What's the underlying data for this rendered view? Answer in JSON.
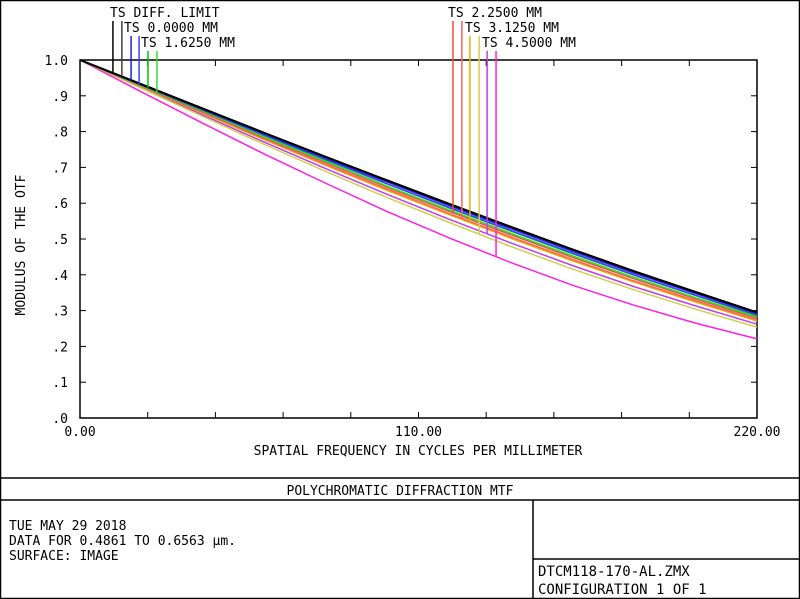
{
  "chart_data": {
    "type": "line",
    "title": "POLYCHROMATIC DIFFRACTION MTF",
    "xlabel": "SPATIAL FREQUENCY IN CYCLES PER MILLIMETER",
    "ylabel": "MODULUS OF THE OTF",
    "xlim": [
      0,
      220
    ],
    "ylim": [
      0,
      1.0
    ],
    "x_tick_labels": [
      "0.00",
      "110.00",
      "220.00"
    ],
    "y_tick_labels": [
      ".0",
      ".1",
      ".2",
      ".3",
      ".4",
      ".5",
      ".6",
      ".7",
      ".8",
      ".9",
      "1.0"
    ],
    "grid": false,
    "legend_placement": "top",
    "legend": [
      {
        "label": "TS DIFF. LIMIT",
        "series": [
          0,
          1
        ]
      },
      {
        "label": "TS 0.0000 MM",
        "series": [
          2,
          3
        ]
      },
      {
        "label": "TS 1.6250 MM",
        "series": [
          4,
          5
        ]
      },
      {
        "label": "TS 2.2500 MM",
        "series": [
          6,
          7
        ]
      },
      {
        "label": "TS 3.1250 MM",
        "series": [
          8,
          9
        ]
      },
      {
        "label": "TS 4.5000 MM",
        "series": [
          10,
          11
        ]
      }
    ],
    "x": [
      0,
      20,
      40,
      60,
      80,
      100,
      120,
      140,
      160,
      180,
      200,
      220
    ],
    "series": [
      {
        "color": "#000000",
        "values": [
          1,
          0.932,
          0.864,
          0.796,
          0.729,
          0.663,
          0.598,
          0.534,
          0.471,
          0.41,
          0.352,
          0.295
        ]
      },
      {
        "color": "#404040",
        "values": [
          1,
          0.932,
          0.864,
          0.796,
          0.729,
          0.663,
          0.598,
          0.534,
          0.471,
          0.41,
          0.352,
          0.295
        ]
      },
      {
        "color": "#2020e0",
        "values": [
          1,
          0.931,
          0.862,
          0.793,
          0.725,
          0.659,
          0.593,
          0.529,
          0.466,
          0.405,
          0.348,
          0.291
        ]
      },
      {
        "color": "#4040ff",
        "values": [
          1,
          0.93,
          0.86,
          0.79,
          0.722,
          0.654,
          0.588,
          0.524,
          0.461,
          0.4,
          0.343,
          0.288
        ]
      },
      {
        "color": "#00c800",
        "values": [
          1,
          0.93,
          0.859,
          0.789,
          0.72,
          0.653,
          0.587,
          0.522,
          0.459,
          0.399,
          0.342,
          0.286
        ]
      },
      {
        "color": "#30e030",
        "values": [
          1,
          0.928,
          0.857,
          0.785,
          0.716,
          0.647,
          0.581,
          0.516,
          0.453,
          0.393,
          0.336,
          0.282
        ]
      },
      {
        "color": "#f05030",
        "values": [
          1,
          0.927,
          0.855,
          0.783,
          0.713,
          0.644,
          0.577,
          0.512,
          0.449,
          0.389,
          0.333,
          0.279
        ]
      },
      {
        "color": "#ff6060",
        "values": [
          1,
          0.926,
          0.853,
          0.78,
          0.708,
          0.639,
          0.571,
          0.506,
          0.443,
          0.383,
          0.328,
          0.274
        ]
      },
      {
        "color": "#e0b000",
        "values": [
          1,
          0.925,
          0.851,
          0.777,
          0.705,
          0.635,
          0.568,
          0.502,
          0.439,
          0.38,
          0.324,
          0.271
        ]
      },
      {
        "color": "#d0d050",
        "values": [
          1,
          0.921,
          0.842,
          0.764,
          0.688,
          0.615,
          0.546,
          0.479,
          0.416,
          0.358,
          0.304,
          0.254
        ]
      },
      {
        "color": "#c040e0",
        "values": [
          1,
          0.923,
          0.846,
          0.77,
          0.696,
          0.624,
          0.555,
          0.489,
          0.426,
          0.367,
          0.313,
          0.262
        ]
      },
      {
        "color": "#ff20e0",
        "values": [
          1,
          0.911,
          0.823,
          0.737,
          0.655,
          0.576,
          0.503,
          0.434,
          0.371,
          0.315,
          0.265,
          0.221
        ]
      }
    ]
  },
  "info": {
    "date": "TUE MAY 29 2018",
    "data_range": "DATA FOR 0.4861 TO 0.6563 µm.",
    "surface": "SURFACE: IMAGE",
    "file": "DTCM118-170-AL.ZMX",
    "configuration": "CONFIGURATION 1 OF 1"
  }
}
